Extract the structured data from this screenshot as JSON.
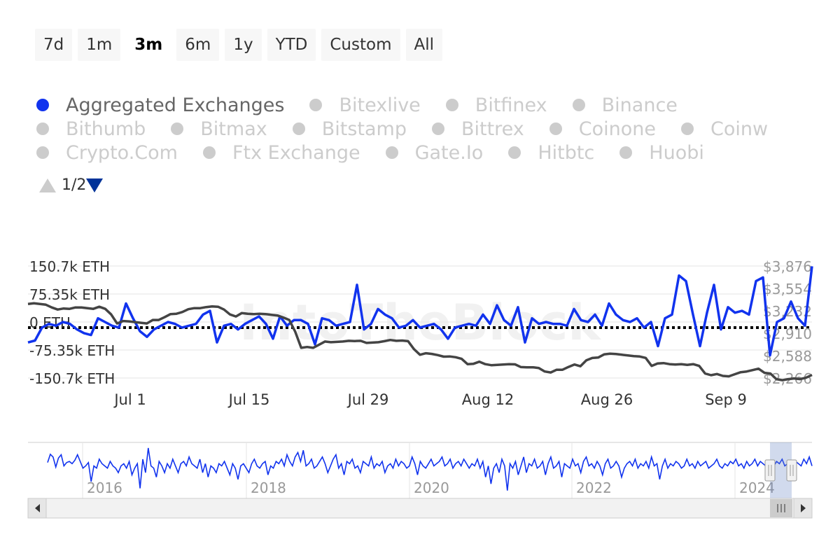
{
  "range_selector": {
    "buttons": [
      "7d",
      "1m",
      "3m",
      "6m",
      "1y",
      "YTD",
      "Custom",
      "All"
    ],
    "selected": "3m"
  },
  "legend": {
    "rows": [
      [
        "Aggregated Exchanges",
        "Bitexlive",
        "Bitfinex",
        "Binance"
      ],
      [
        "Bithumb",
        "Bitmax",
        "Bitstamp",
        "Bittrex",
        "Coinone",
        "Coinw"
      ],
      [
        "Crypto.Com",
        "Ftx Exchange",
        "Gate.Io",
        "Hitbtc",
        "Huobi"
      ]
    ],
    "active": "Aggregated Exchanges",
    "pager": "1/2"
  },
  "watermark": "IntoTheBlock",
  "colors": {
    "netflow": "#1133ee",
    "price": "#444444",
    "navigator": "#1133ee",
    "zero_line": "#000000"
  },
  "chart_data": {
    "type": "line",
    "x_tick_labels": [
      "Jul 1",
      "Jul 15",
      "Jul 29",
      "Aug 12",
      "Aug 26",
      "Sep 9"
    ],
    "left_axis": {
      "tick_labels": [
        "150.7k ETH",
        "75.35k ETH",
        "0 ETH",
        "-75.35k ETH",
        "-150.7k ETH"
      ],
      "ylim": [
        -150700,
        150700
      ]
    },
    "right_axis": {
      "tick_labels": [
        "$3,876",
        "$3,554",
        "$3,232",
        "$2,910",
        "$2,588",
        "$2,266"
      ],
      "ylim": [
        2266,
        3876
      ]
    },
    "series": [
      {
        "key": "netflow",
        "axis": "left",
        "values": [
          -55000,
          -50000,
          -15000,
          -5000,
          -10000,
          0,
          -5000,
          -20000,
          -30000,
          -35000,
          10000,
          0,
          -10000,
          -15000,
          50000,
          10000,
          -25000,
          -40000,
          -20000,
          -10000,
          0,
          -5000,
          -15000,
          -10000,
          -5000,
          20000,
          30000,
          -55000,
          -10000,
          -5000,
          -20000,
          -5000,
          5000,
          15000,
          -5000,
          -45000,
          15000,
          -10000,
          5000,
          5000,
          -5000,
          -60000,
          10000,
          5000,
          -10000,
          -5000,
          0,
          100000,
          -20000,
          -5000,
          35000,
          20000,
          10000,
          -15000,
          -10000,
          5000,
          -15000,
          -10000,
          -5000,
          -20000,
          -45000,
          -15000,
          -10000,
          -5000,
          -10000,
          20000,
          -5000,
          45000,
          5000,
          -10000,
          40000,
          -55000,
          10000,
          -5000,
          0,
          -5000,
          -5000,
          -10000,
          35000,
          5000,
          0,
          20000,
          -10000,
          50000,
          20000,
          5000,
          0,
          10000,
          -15000,
          0,
          -65000,
          10000,
          20000,
          125000,
          110000,
          20000,
          -65000,
          25000,
          100000,
          -20000,
          40000,
          25000,
          30000,
          20000,
          110000,
          120000,
          -90000,
          0,
          10000,
          55000,
          10000,
          -10000,
          150000
        ]
      },
      {
        "key": "price",
        "axis": "right",
        "values": [
          3330,
          3340,
          3330,
          3320,
          3280,
          3250,
          3265,
          3260,
          3280,
          3280,
          3270,
          3260,
          3290,
          3260,
          3180,
          3050,
          3085,
          3080,
          3070,
          3060,
          3050,
          3100,
          3100,
          3140,
          3185,
          3190,
          3215,
          3255,
          3270,
          3270,
          3285,
          3295,
          3290,
          3250,
          3180,
          3150,
          3200,
          3190,
          3185,
          3190,
          3185,
          3175,
          3165,
          3135,
          3100,
          2930,
          2700,
          2712,
          2700,
          2745,
          2790,
          2780,
          2785,
          2790,
          2800,
          2797,
          2800,
          2770,
          2775,
          2780,
          2795,
          2812,
          2800,
          2804,
          2795,
          2680,
          2600,
          2622,
          2612,
          2595,
          2573,
          2576,
          2565,
          2542,
          2465,
          2470,
          2500,
          2465,
          2450,
          2455,
          2460,
          2465,
          2462,
          2423,
          2420,
          2420,
          2410,
          2360,
          2345,
          2385,
          2385,
          2425,
          2460,
          2435,
          2520,
          2554,
          2560,
          2605,
          2615,
          2610,
          2600,
          2590,
          2580,
          2575,
          2555,
          2440,
          2475,
          2480,
          2465,
          2460,
          2465,
          2455,
          2465,
          2440,
          2330,
          2306,
          2323,
          2296,
          2290,
          2320,
          2350,
          2360,
          2380,
          2400,
          2340,
          2330,
          2250,
          2235,
          2250,
          2260,
          2250,
          2270,
          2310
        ]
      }
    ],
    "navigator": {
      "x_tick_labels": [
        "2016",
        "2018",
        "2020",
        "2022",
        "2024"
      ],
      "values": [
        0.35,
        0.72,
        0.6,
        0.15,
        0.55,
        0.7,
        0.2,
        0.35,
        0.4,
        0.3,
        0.45,
        0.7,
        0.4,
        0.1,
        0.2,
        0.35,
        -0.5,
        0.2,
        0.1,
        0.5,
        0.3,
        0.2,
        0.1,
        0.4,
        0.2,
        0.1,
        -0.1,
        0.2,
        0.3,
        0.1,
        0.4,
        -0.2,
        0.1,
        0.3,
        -0.8,
        0.5,
        -0.1,
        1.0,
        0.2,
        0.1,
        -0.3,
        0.4,
        0.2,
        -0.1,
        0.3,
        0.1,
        0.5,
        0.2,
        -0.1,
        0.3,
        0.4,
        0.2,
        0.6,
        0.3,
        0.2,
        0.1,
        0.5,
        -0.1,
        0.3,
        -0.3,
        0.2,
        0.1,
        -0.1,
        0.3,
        0.2,
        0.4,
        0.1,
        -0.2,
        0.3,
        0.1,
        -0.4,
        0.2,
        0.3,
        0.1,
        -0.1,
        0.3,
        0.5,
        0.2,
        0.1,
        0.3,
        0.4,
        -0.2,
        0.2,
        0.1,
        0.4,
        0.3,
        0.5,
        0.2,
        0.7,
        0.4,
        0.2,
        0.6,
        0.8,
        0.4,
        0.9,
        0.2,
        0.3,
        0.5,
        0.1,
        0.2,
        0.4,
        0.6,
        0.3,
        -0.1,
        0.2,
        0.5,
        0.7,
        0.1,
        0.3,
        -0.2,
        0.4,
        0.3,
        0.5,
        0.1,
        0.2,
        -0.1,
        0.4,
        0.3,
        0.2,
        0.6,
        0.1,
        0.3,
        0.2,
        0.4,
        -0.1,
        0.2,
        0.3,
        0.1,
        0.5,
        0.2,
        0.4,
        0.3,
        0.1,
        0.2,
        0.6,
        0.3,
        -0.2,
        0.4,
        0.2,
        0.1,
        0.3,
        0.5,
        0.2,
        0.3,
        0.4,
        0.6,
        0.2,
        0.3,
        0.5,
        0.1,
        0.3,
        0.4,
        0.2,
        0.5,
        0.3,
        0.1,
        0.3,
        0.2,
        0.5,
        0.1,
        0.4,
        -0.3,
        0.2,
        -0.6,
        0.1,
        0.3,
        -0.1,
        0.5,
        0.2,
        -0.9,
        0.3,
        0.1,
        0.4,
        -0.2,
        0.2,
        0.6,
        -0.1,
        0.3,
        0.2,
        0.5,
        0.1,
        0.2,
        0.4,
        -0.2,
        0.3,
        0.6,
        0.1,
        0.2,
        0.4,
        -0.3,
        0.3,
        0.2,
        0.1,
        0.5,
        0.2,
        0.3,
        -0.1,
        0.4,
        0.6,
        0.2,
        0.3,
        0.1,
        0.4,
        0.2,
        -0.2,
        0.3,
        0.5,
        0.1,
        0.2,
        0.4,
        0.2,
        -0.3,
        0.1,
        0.3,
        0.4,
        0.2,
        0.5,
        0.1,
        0.3,
        0.2,
        0.4,
        0.1,
        0.6,
        0.2,
        0.3,
        -0.4,
        0.2,
        0.5,
        0.1,
        0.3,
        0.2,
        0.4,
        0.3,
        0.1,
        0.2,
        0.5,
        0.2,
        0.3,
        0.1,
        0.4,
        0.2,
        0.3,
        0.4,
        0.1,
        0.2,
        0.3,
        0.5,
        0.2,
        0.1,
        0.3,
        0.2,
        0.4,
        0.3,
        0.5,
        0.2,
        0.3,
        0.1,
        0.4,
        0.2,
        0.3,
        0.5,
        0.2,
        0.4,
        0.3,
        0.2,
        0.1,
        0.3,
        0.2,
        0.4,
        0.3,
        0.5,
        0.2,
        0.3,
        0.1,
        0.2,
        0.4,
        0.3,
        0.2,
        0.5,
        0.3,
        0.6,
        0.2
      ]
    },
    "grid": true,
    "legend_position": "top-left"
  }
}
